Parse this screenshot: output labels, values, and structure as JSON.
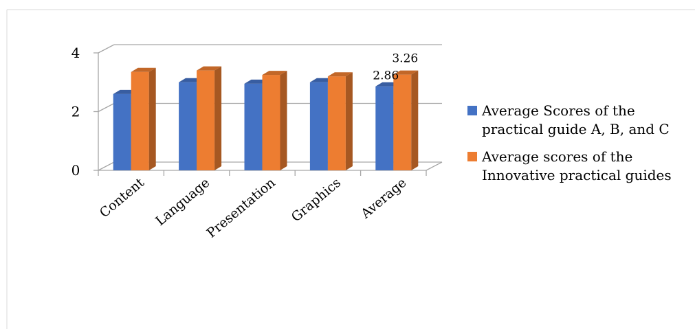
{
  "chart_data": {
    "type": "bar",
    "categories": [
      "Content",
      "Language",
      "Presentation",
      "Graphics",
      "Average"
    ],
    "series": [
      {
        "name": "Average Scores of the practical guide  A, B, and C",
        "values": [
          2.6,
          3.0,
          2.95,
          3.0,
          2.86
        ],
        "color": "#4472C4"
      },
      {
        "name": "Average scores of the Innovative practical guides",
        "values": [
          3.35,
          3.4,
          3.25,
          3.2,
          3.26
        ],
        "color": "#ED7D31"
      }
    ],
    "data_labels": [
      {
        "series": 0,
        "category": "Average",
        "text": "2.86"
      },
      {
        "series": 1,
        "category": "Average",
        "text": "3.26"
      }
    ],
    "yticks": [
      "0",
      "2",
      "4"
    ],
    "ylim": [
      0,
      4
    ],
    "grid": true,
    "three_d": true,
    "legend_position": "right"
  },
  "legend": {
    "items": [
      {
        "label": "Average Scores of the practical guide  A, B, and C",
        "color": "#4472C4"
      },
      {
        "label": "Average scores of the Innovative practical guides",
        "color": "#ED7D31"
      }
    ]
  }
}
